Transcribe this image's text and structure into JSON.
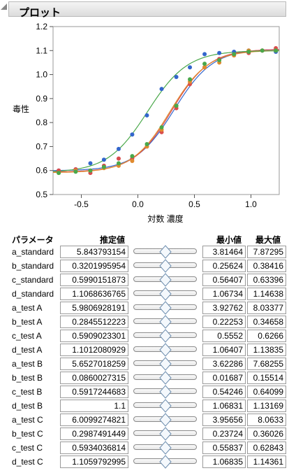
{
  "header": {
    "title": "プロット"
  },
  "chart_data": {
    "type": "scatter",
    "ylabel": "毒性",
    "xlabel": "対数 濃度",
    "xlim": [
      -0.75,
      1.25
    ],
    "ylim": [
      0.5,
      1.2
    ],
    "x_ticks": [
      -0.5,
      0.0,
      0.5,
      1.0
    ],
    "x_tick_labels": [
      "-0.5",
      "0.0",
      "0.5",
      "1.0"
    ],
    "y_ticks": [
      0.5,
      0.6,
      0.7,
      0.8,
      0.9,
      1.0,
      1.1,
      1.2
    ],
    "y_tick_labels": [
      "0.5",
      "0.6",
      "0.7",
      "0.8",
      "0.9",
      "1.0",
      "1.1",
      "1.2"
    ],
    "grid": false,
    "series": [
      {
        "color": "#3366cc",
        "curve": {
          "a": 5.843793154,
          "b": 0.3201995954,
          "c": 0.5990151873,
          "d": 1.1068636765
        },
        "x": [
          -0.7,
          -0.55,
          -0.42,
          -0.3,
          -0.17,
          -0.05,
          0.08,
          0.21,
          0.34,
          0.46,
          0.59,
          0.72,
          0.85,
          0.98,
          1.1,
          1.22
        ],
        "y": [
          0.6,
          0.605,
          0.63,
          0.645,
          0.69,
          0.75,
          0.83,
          0.94,
          0.99,
          1.03,
          1.085,
          1.09,
          1.095,
          1.1,
          1.1,
          1.095
        ]
      },
      {
        "color": "#d94c4c",
        "curve": {
          "a": 6.0099274821,
          "b": 0.2987491449,
          "c": 0.5934036814,
          "d": 1.1059792995
        },
        "x": [
          -0.7,
          -0.55,
          -0.42,
          -0.3,
          -0.17,
          -0.05,
          0.08,
          0.21,
          0.34,
          0.46,
          0.59,
          0.72,
          0.85,
          0.98,
          1.1,
          1.22
        ],
        "y": [
          0.6,
          0.605,
          0.59,
          0.62,
          0.65,
          0.65,
          0.7,
          0.76,
          0.86,
          0.96,
          1.03,
          1.065,
          1.08,
          1.09,
          1.1,
          1.11
        ]
      },
      {
        "color": "#e08a2e",
        "curve": {
          "a": 5.9806928191,
          "b": 0.2845512223,
          "c": 0.5909023301,
          "d": 1.1012080929
        },
        "x": [
          -0.7,
          -0.55,
          -0.42,
          -0.3,
          -0.17,
          -0.05,
          0.08,
          0.21,
          0.34,
          0.46,
          0.59,
          0.72,
          0.85,
          0.98,
          1.1,
          1.22
        ],
        "y": [
          0.59,
          0.6,
          0.6,
          0.61,
          0.62,
          0.64,
          0.7,
          0.77,
          0.87,
          0.97,
          1.03,
          1.05,
          1.08,
          1.1,
          1.1,
          1.1
        ]
      },
      {
        "color": "#4aa84a",
        "curve": {
          "a": 5.6527018259,
          "b": 0.0860027315,
          "c": 0.5917244683,
          "d": 1.1
        },
        "x": [
          -0.7,
          -0.55,
          -0.42,
          -0.3,
          -0.17,
          -0.05,
          0.08,
          0.21,
          0.34,
          0.46,
          0.59,
          0.72,
          0.85,
          0.98,
          1.1,
          1.22
        ],
        "y": [
          0.59,
          0.595,
          0.6,
          0.615,
          0.63,
          0.66,
          0.71,
          0.78,
          0.87,
          0.98,
          1.045,
          1.06,
          1.085,
          1.095,
          1.1,
          1.1
        ]
      }
    ]
  },
  "table": {
    "col_param": "パラメータ",
    "col_est": "推定値",
    "col_min": "最小値",
    "col_max": "最大値",
    "rows": [
      {
        "name": "a_standard",
        "est": "5.843793154",
        "min": "3.81464",
        "max": "7.87295",
        "pos": 0.5
      },
      {
        "name": "b_standard",
        "est": "0.3201995954",
        "min": "0.25624",
        "max": "0.38416",
        "pos": 0.5
      },
      {
        "name": "c_standard",
        "est": "0.5990151873",
        "min": "0.56407",
        "max": "0.63396",
        "pos": 0.5
      },
      {
        "name": "d_standard",
        "est": "1.1068636765",
        "min": "1.06734",
        "max": "1.14638",
        "pos": 0.5
      },
      {
        "name": "a_test A",
        "est": "5.9806928191",
        "min": "3.92762",
        "max": "8.03377",
        "pos": 0.5
      },
      {
        "name": "b_test A",
        "est": "0.2845512223",
        "min": "0.22253",
        "max": "0.34658",
        "pos": 0.5
      },
      {
        "name": "c_test A",
        "est": "0.5909023301",
        "min": "0.5552",
        "max": "0.6266",
        "pos": 0.5
      },
      {
        "name": "d_test A",
        "est": "1.1012080929",
        "min": "1.06407",
        "max": "1.13835",
        "pos": 0.5
      },
      {
        "name": "a_test B",
        "est": "5.6527018259",
        "min": "3.62286",
        "max": "7.68255",
        "pos": 0.5
      },
      {
        "name": "b_test B",
        "est": "0.0860027315",
        "min": "0.01687",
        "max": "0.15514",
        "pos": 0.5
      },
      {
        "name": "c_test B",
        "est": "0.5917244683",
        "min": "0.54246",
        "max": "0.64099",
        "pos": 0.5
      },
      {
        "name": "d_test B",
        "est": "1.1",
        "min": "1.06831",
        "max": "1.13169",
        "pos": 0.5
      },
      {
        "name": "a_test C",
        "est": "6.0099274821",
        "min": "3.95656",
        "max": "8.0633",
        "pos": 0.5
      },
      {
        "name": "b_test C",
        "est": "0.2987491449",
        "min": "0.23724",
        "max": "0.36026",
        "pos": 0.5
      },
      {
        "name": "c_test C",
        "est": "0.5934036814",
        "min": "0.55837",
        "max": "0.62843",
        "pos": 0.5
      },
      {
        "name": "d_test C",
        "est": "1.1059792995",
        "min": "1.06835",
        "max": "1.14361",
        "pos": 0.5
      }
    ]
  }
}
